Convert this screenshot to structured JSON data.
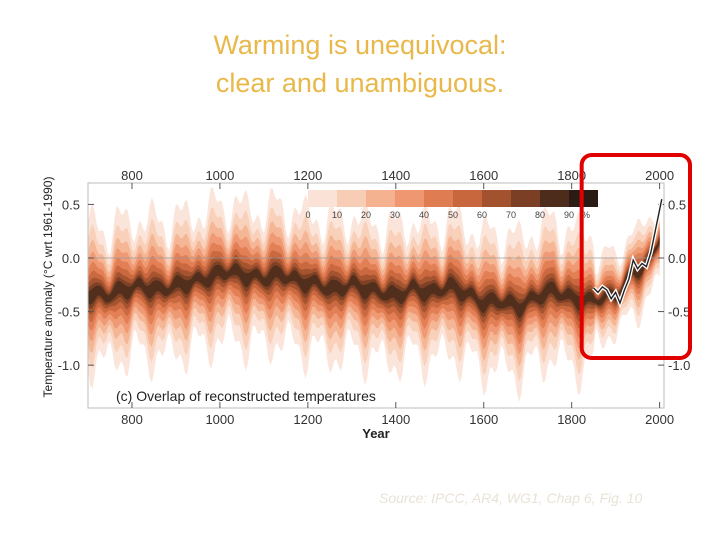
{
  "slide": {
    "title_line1": "Warming is unequivocal:",
    "title_line2": "clear and unambiguous.",
    "source": "Source: IPCC, AR4, WG1, Chap 6, Fig. 10"
  },
  "colors": {
    "title": "#e8b84a",
    "highlight_box": "#e00000",
    "shade_scale": [
      "#fbe2d6",
      "#f8cdb6",
      "#f4b291",
      "#ee9770",
      "#e07c52",
      "#c8663e",
      "#a2522f",
      "#7a3f25",
      "#4e2c1c",
      "#2a1c14"
    ]
  },
  "chart_data": {
    "type": "area",
    "title": "(c) Overlap of reconstructed temperatures",
    "xlabel": "Year",
    "ylabel": "Temperature anomaly  (°C wrt 1961-1990)",
    "xlim": [
      700,
      2010
    ],
    "ylim": [
      -1.4,
      0.7
    ],
    "x_ticks": [
      "800",
      "1000",
      "1200",
      "1400",
      "1600",
      "1800",
      "2000"
    ],
    "y_ticks": [
      "0.5",
      "0.0",
      "-0.5",
      "-1.0"
    ],
    "legend": {
      "placement": "top",
      "labels": [
        "0",
        "10",
        "20",
        "30",
        "40",
        "50",
        "60",
        "70",
        "80",
        "90",
        "%"
      ]
    },
    "core_series": {
      "x": [
        700,
        740,
        780,
        820,
        860,
        900,
        940,
        980,
        1000,
        1020,
        1060,
        1100,
        1140,
        1180,
        1220,
        1260,
        1300,
        1340,
        1380,
        1400,
        1440,
        1480,
        1520,
        1560,
        1600,
        1640,
        1680,
        1720,
        1760,
        1800,
        1840,
        1880,
        1900,
        1920,
        1940,
        1960,
        1980,
        2000
      ],
      "y": [
        -0.33,
        -0.35,
        -0.3,
        -0.26,
        -0.3,
        -0.26,
        -0.22,
        -0.18,
        -0.14,
        -0.12,
        -0.17,
        -0.19,
        -0.15,
        -0.22,
        -0.24,
        -0.3,
        -0.24,
        -0.3,
        -0.33,
        -0.36,
        -0.28,
        -0.33,
        -0.26,
        -0.33,
        -0.42,
        -0.4,
        -0.46,
        -0.36,
        -0.3,
        -0.38,
        -0.4,
        -0.36,
        -0.35,
        -0.24,
        -0.12,
        -0.1,
        0.0,
        0.2
      ]
    },
    "instrumental_series": {
      "x": [
        1850,
        1860,
        1870,
        1880,
        1890,
        1900,
        1910,
        1920,
        1930,
        1940,
        1950,
        1960,
        1970,
        1980,
        1990,
        2000,
        2005
      ],
      "y": [
        -0.28,
        -0.32,
        -0.27,
        -0.3,
        -0.38,
        -0.32,
        -0.42,
        -0.3,
        -0.2,
        -0.02,
        -0.1,
        -0.05,
        -0.08,
        0.05,
        0.25,
        0.45,
        0.55
      ]
    },
    "highlight_range": [
      1800,
      2010
    ],
    "grid": "horizontal line at 0.0"
  }
}
